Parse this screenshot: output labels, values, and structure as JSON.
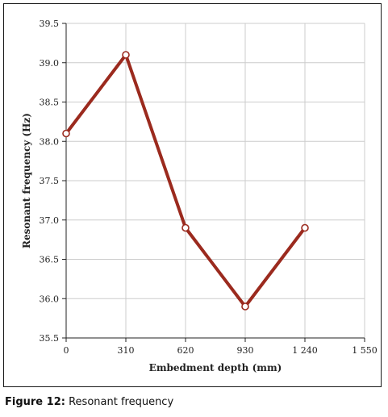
{
  "caption": {
    "label": "Figure 12:",
    "text": "Resonant frequency"
  },
  "chart_data": {
    "type": "line",
    "xlabel": "Embedment depth (mm)",
    "ylabel": "Resonant frequency (Hz)",
    "xlim": [
      0,
      1550
    ],
    "ylim": [
      35.5,
      39.5
    ],
    "x_ticks": [
      0,
      310,
      620,
      930,
      1240,
      1550
    ],
    "x_tick_labels": [
      "0",
      "310",
      "620",
      "930",
      "1 240",
      "1 550"
    ],
    "y_ticks": [
      35.5,
      36.0,
      36.5,
      37.0,
      37.5,
      38.0,
      38.5,
      39.0,
      39.5
    ],
    "y_tick_labels": [
      "35.5",
      "36.0",
      "36.5",
      "37.0",
      "37.5",
      "38.0",
      "38.5",
      "39.0",
      "39.5"
    ],
    "grid": true,
    "series": [
      {
        "x": [
          0,
          310,
          620,
          930,
          1240
        ],
        "values": [
          38.1,
          39.1,
          36.9,
          35.9,
          36.9
        ]
      }
    ],
    "colors": {
      "line": "#9b2a1e",
      "marker_fill": "#ffffff",
      "grid": "#cccccc"
    }
  }
}
